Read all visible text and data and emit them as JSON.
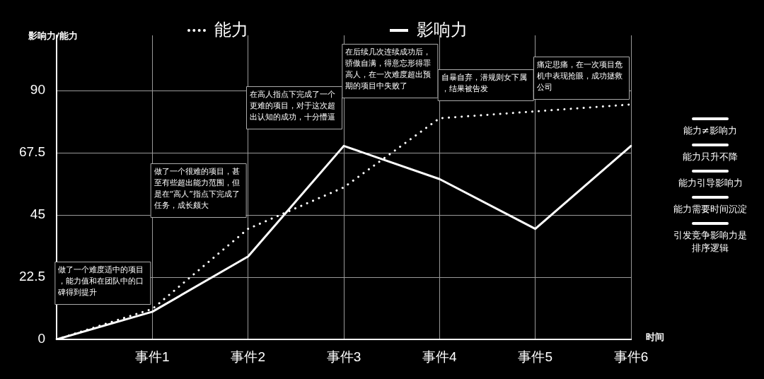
{
  "chart_data": {
    "type": "line",
    "ylabel": "影响力/能力",
    "xlabel": "时间",
    "categories": [
      null,
      "事件1",
      "事件2",
      "事件3",
      "事件4",
      "事件5",
      "事件6"
    ],
    "series": [
      {
        "name": "能力",
        "color": "#ffffff",
        "line_style": "dotted",
        "values": [
          0,
          11,
          40,
          55,
          80,
          82.5,
          85
        ]
      },
      {
        "name": "影响力",
        "color": "#ffffff",
        "line_style": "solid",
        "values": [
          0,
          10,
          30,
          70,
          58,
          40,
          70
        ]
      }
    ],
    "ylim": [
      0,
      110
    ],
    "yticks": [
      0,
      22.5,
      45,
      67.5,
      90
    ],
    "grid": true,
    "legend": "top",
    "marker": "none",
    "annotations": [
      "做了一个难度适中的项目，能力值和在团队中的口碑得到提升",
      "做了一个很难的项目，甚至有些超出能力范围，但是在“高人”指点下完成了任务，成长颇大",
      "在高人指点下完成了一个更难的项目，对于这次超出认知的成功，十分懵逼",
      "在后续几次连续成功后，骄傲自满，得意忘形得罪高人，在一次难度超出预期的项目中失败了",
      "自暴自弃，潜规则女下属，结果被告发",
      "痛定思痛，在一次项目危机中表现抢眼，成功拯救公司",
      "能力≠影响力",
      "能力只升不降",
      "能力引导影响力",
      "能力需要时间沉淀",
      "引发竞争影响力是排序逻辑"
    ]
  }
}
